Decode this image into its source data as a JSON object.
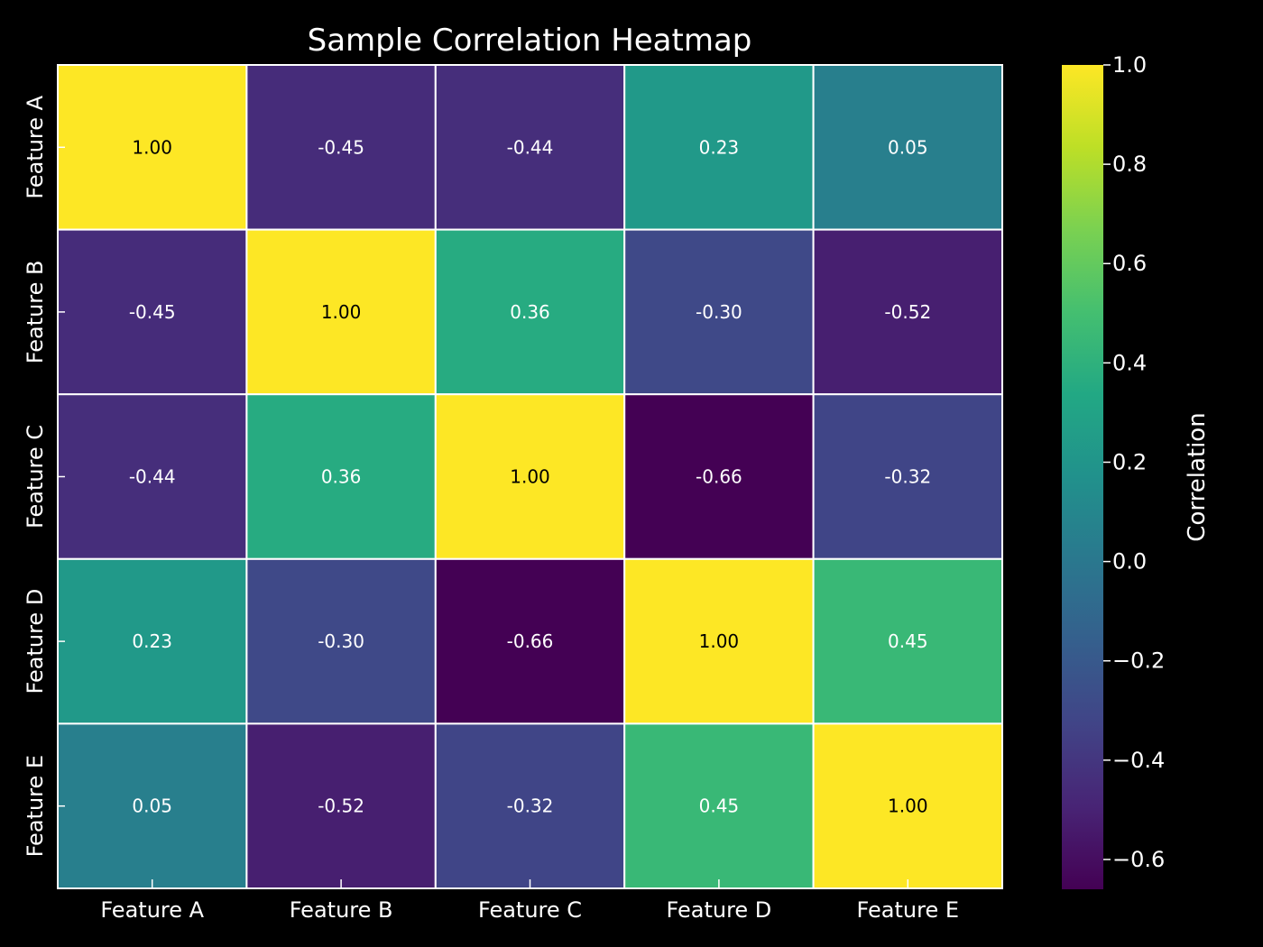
{
  "chart_data": {
    "type": "heatmap",
    "title": "Sample Correlation Heatmap",
    "x_categories": [
      "Feature A",
      "Feature B",
      "Feature C",
      "Feature D",
      "Feature E"
    ],
    "y_categories": [
      "Feature A",
      "Feature B",
      "Feature C",
      "Feature D",
      "Feature E"
    ],
    "values": [
      [
        1.0,
        -0.45,
        -0.44,
        0.23,
        0.05
      ],
      [
        -0.45,
        1.0,
        0.36,
        -0.3,
        -0.52
      ],
      [
        -0.44,
        0.36,
        1.0,
        -0.66,
        -0.32
      ],
      [
        0.23,
        -0.3,
        -0.66,
        1.0,
        0.45
      ],
      [
        0.05,
        -0.52,
        -0.32,
        0.45,
        1.0
      ]
    ],
    "value_format": "0.00",
    "colormap": "viridis",
    "colorbar": {
      "label": "Correlation",
      "range": [
        -0.66,
        1.0
      ],
      "ticks": [
        1.0,
        0.8,
        0.6,
        0.4,
        0.2,
        0.0,
        -0.2,
        -0.4,
        -0.6
      ],
      "tick_labels": [
        "1.0",
        "0.8",
        "0.6",
        "0.4",
        "0.2",
        "0.0",
        "−0.2",
        "−0.4",
        "−0.6"
      ]
    },
    "cell_border_color": "#ffffff",
    "background_color": "#000000",
    "text_color": "#ffffff"
  }
}
